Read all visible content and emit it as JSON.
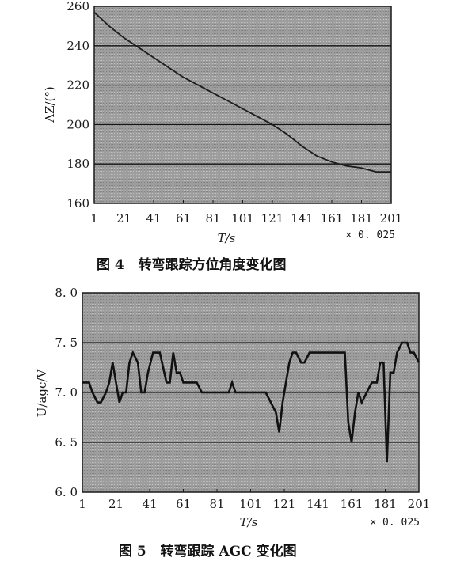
{
  "chart_data": [
    {
      "type": "line",
      "caption": "图 4   转弯跟踪方位角度变化图",
      "xlabel": "T/s",
      "x_multiplier": "× 0. 025",
      "ylabel": "AZ/(°)",
      "xlim": [
        1,
        201
      ],
      "ylim": [
        160,
        260
      ],
      "x_ticks": [
        1,
        21,
        41,
        61,
        81,
        101,
        121,
        141,
        161,
        181,
        201
      ],
      "y_ticks": [
        160,
        180,
        200,
        220,
        240,
        260
      ],
      "grid": true,
      "series": [
        {
          "x": [
            1,
            11,
            21,
            31,
            41,
            51,
            61,
            71,
            81,
            91,
            101,
            111,
            121,
            131,
            141,
            151,
            161,
            171,
            181,
            191,
            201
          ],
          "y": [
            257,
            250,
            244,
            239,
            234,
            229,
            224,
            220,
            216,
            212,
            208,
            204,
            200,
            195,
            189,
            184,
            181,
            179,
            178,
            176,
            176
          ]
        }
      ]
    },
    {
      "type": "line",
      "caption": "图 5   转弯跟踪 AGC 变化图",
      "xlabel": "T/s",
      "x_multiplier": "× 0. 025",
      "ylabel": "U/agc/V",
      "xlim": [
        1,
        201
      ],
      "ylim": [
        6.0,
        8.0
      ],
      "x_ticks": [
        1,
        21,
        41,
        61,
        81,
        101,
        121,
        141,
        161,
        181,
        201
      ],
      "y_ticks": [
        "6. 0",
        "6. 5",
        "7. 0",
        "7. 5",
        "8. 0"
      ],
      "grid": true,
      "series": [
        {
          "x": [
            1,
            5,
            7,
            10,
            12,
            15,
            17,
            19,
            21,
            23,
            25,
            27,
            29,
            31,
            34,
            36,
            38,
            40,
            43,
            47,
            51,
            53,
            55,
            57,
            59,
            61,
            63,
            65,
            67,
            69,
            72,
            76,
            80,
            84,
            88,
            90,
            92,
            94,
            98,
            102,
            106,
            110,
            113,
            116,
            118,
            120,
            122,
            124,
            126,
            128,
            131,
            133,
            136,
            138,
            141,
            144,
            150,
            157,
            159,
            161,
            163,
            165,
            167,
            170,
            173,
            176,
            178,
            180,
            182,
            184,
            186,
            188,
            191,
            194,
            196,
            198,
            201
          ],
          "y": [
            7.1,
            7.1,
            7.0,
            6.9,
            6.9,
            7.0,
            7.1,
            7.3,
            7.1,
            6.9,
            7.0,
            7.0,
            7.3,
            7.4,
            7.3,
            7.0,
            7.0,
            7.2,
            7.4,
            7.4,
            7.1,
            7.1,
            7.4,
            7.2,
            7.2,
            7.1,
            7.1,
            7.1,
            7.1,
            7.1,
            7.0,
            7.0,
            7.0,
            7.0,
            7.0,
            7.1,
            7.0,
            7.0,
            7.0,
            7.0,
            7.0,
            7.0,
            6.9,
            6.8,
            6.6,
            6.9,
            7.1,
            7.3,
            7.4,
            7.4,
            7.3,
            7.3,
            7.4,
            7.4,
            7.4,
            7.4,
            7.4,
            7.4,
            6.7,
            6.5,
            6.8,
            7.0,
            6.9,
            7.0,
            7.1,
            7.1,
            7.3,
            7.3,
            6.3,
            7.2,
            7.2,
            7.4,
            7.5,
            7.5,
            7.4,
            7.4,
            7.3
          ]
        }
      ]
    }
  ]
}
